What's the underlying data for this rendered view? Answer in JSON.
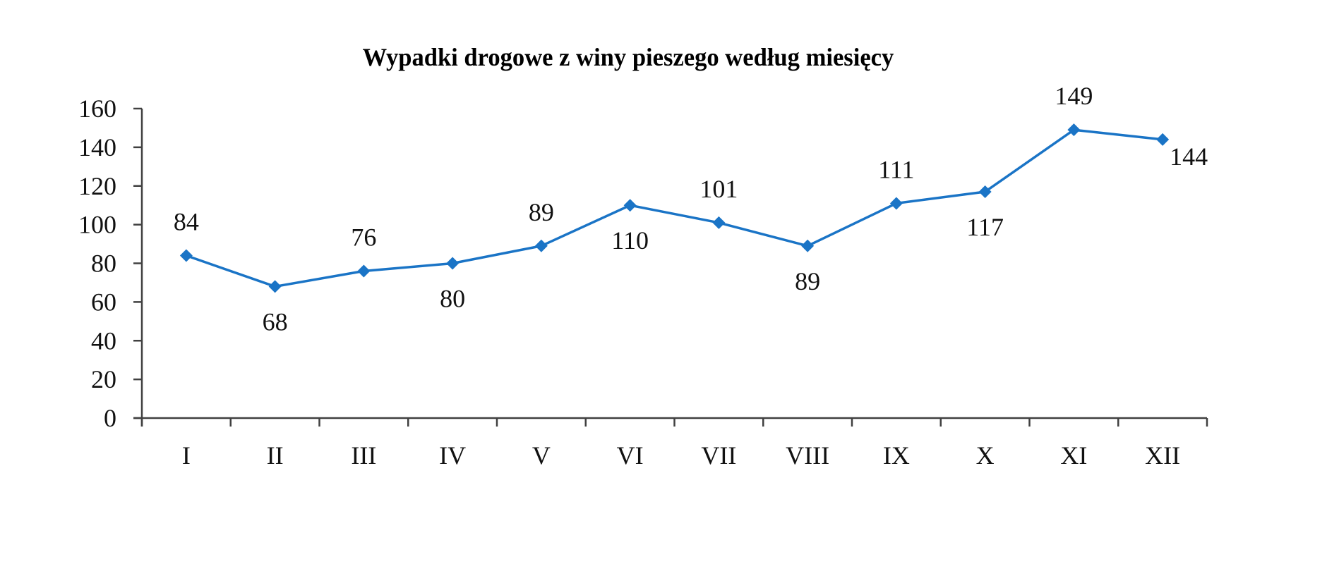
{
  "chart_data": {
    "type": "line",
    "title": "Wypadki drogowe z winy pieszego według miesięcy",
    "xlabel": "",
    "ylabel": "",
    "categories": [
      "I",
      "II",
      "III",
      "IV",
      "V",
      "VI",
      "VII",
      "VIII",
      "IX",
      "X",
      "XI",
      "XII"
    ],
    "series": [
      {
        "name": "Wypadki drogowe z winy pieszego",
        "values": [
          84,
          68,
          76,
          80,
          89,
          110,
          101,
          89,
          111,
          117,
          149,
          144
        ],
        "color": "#1A74C6",
        "marker": "diamond"
      }
    ],
    "data_label_positions": [
      "above",
      "below",
      "above",
      "below",
      "above",
      "below",
      "above",
      "below",
      "above",
      "below",
      "above",
      "below-right"
    ],
    "ylim": [
      0,
      160
    ],
    "yticks": [
      0,
      20,
      40,
      60,
      80,
      100,
      120,
      140,
      160
    ],
    "grid": false,
    "legend": "none"
  },
  "colors": {
    "series": "#1A74C6",
    "axis": "#404040",
    "text": "#111111",
    "background": "#FFFFFF"
  }
}
